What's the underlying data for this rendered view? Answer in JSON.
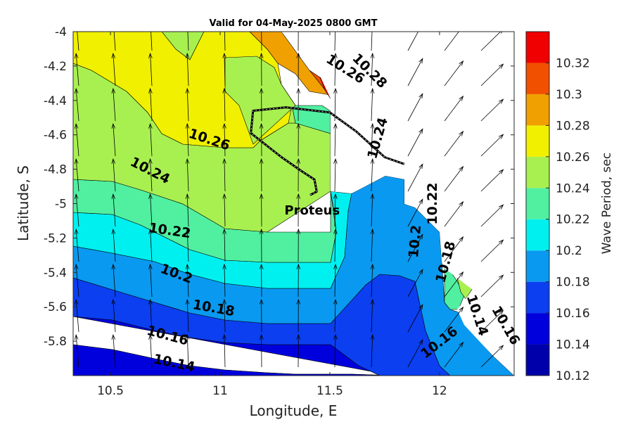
{
  "chart_data": {
    "type": "heatmap",
    "title": "Valid for 04-May-2025 0800 GMT",
    "xlabel": "Longitude, E",
    "ylabel": "Latitude, S",
    "colorbar_label": "Wave Period, sec",
    "xlim": [
      10.33,
      12.34
    ],
    "ylim": [
      -6.0,
      -4.0
    ],
    "x_ticks": [
      "10.5",
      "11",
      "11.5",
      "12"
    ],
    "y_ticks": [
      "-4",
      "-4.2",
      "-4.4",
      "-4.6",
      "-4.8",
      "-5",
      "-5.2",
      "-5.4",
      "-5.6",
      "-5.8"
    ],
    "colorbar": {
      "levels": [
        10.12,
        10.14,
        10.16,
        10.18,
        10.2,
        10.22,
        10.24,
        10.26,
        10.28,
        10.3,
        10.32,
        10.34
      ],
      "tick_labels": [
        "10.12",
        "10.14",
        "10.16",
        "10.18",
        "10.2",
        "10.22",
        "10.24",
        "10.26",
        "10.28",
        "10.3",
        "10.32"
      ],
      "colors": [
        "#0000aa",
        "#0000dd",
        "#0b3ff0",
        "#0a99f0",
        "#00f0f0",
        "#50f0a0",
        "#a8f050",
        "#f0f000",
        "#f0a000",
        "#f05000",
        "#f00000"
      ]
    },
    "contour_labels": [
      {
        "text": "10.28",
        "lon": 11.68,
        "lat": -4.23,
        "rot": 45
      },
      {
        "text": "10.26",
        "lon": 11.57,
        "lat": -4.22,
        "rot": 32
      },
      {
        "text": "10.26",
        "lon": 10.95,
        "lat": -4.63,
        "rot": 18
      },
      {
        "text": "10.24",
        "lon": 10.68,
        "lat": -4.81,
        "rot": 27
      },
      {
        "text": "10.24",
        "lon": 11.72,
        "lat": -4.62,
        "rot": -74
      },
      {
        "text": "10.22",
        "lon": 10.77,
        "lat": -5.16,
        "rot": 8
      },
      {
        "text": "10.22",
        "lon": 11.97,
        "lat": -5.0,
        "rot": -90
      },
      {
        "text": "10.2",
        "lon": 10.8,
        "lat": -5.41,
        "rot": 20
      },
      {
        "text": "10.2",
        "lon": 11.89,
        "lat": -5.22,
        "rot": -85
      },
      {
        "text": "10.18",
        "lon": 10.97,
        "lat": -5.61,
        "rot": 10
      },
      {
        "text": "10.18",
        "lon": 12.03,
        "lat": -5.34,
        "rot": -75
      },
      {
        "text": "10.16",
        "lon": 10.76,
        "lat": -5.77,
        "rot": 15
      },
      {
        "text": "10.16",
        "lon": 12.0,
        "lat": -5.81,
        "rot": -38
      },
      {
        "text": "10.14",
        "lon": 12.17,
        "lat": -5.65,
        "rot": 72
      },
      {
        "text": "10.16",
        "lon": 12.3,
        "lat": -5.71,
        "rot": 60
      },
      {
        "text": "10.14",
        "lon": 10.79,
        "lat": -5.93,
        "rot": 12
      }
    ],
    "vessel": {
      "name": "Proteus",
      "lon": 11.4,
      "lat": -4.94
    },
    "track": [
      [
        11.84,
        -4.77
      ],
      [
        11.75,
        -4.73
      ],
      [
        11.62,
        -4.58
      ],
      [
        11.5,
        -4.47
      ],
      [
        11.3,
        -4.44
      ],
      [
        11.15,
        -4.46
      ],
      [
        11.14,
        -4.59
      ],
      [
        11.28,
        -4.73
      ],
      [
        11.37,
        -4.81
      ],
      [
        11.43,
        -4.86
      ],
      [
        11.44,
        -4.93
      ],
      [
        11.41,
        -4.95
      ]
    ],
    "wave_direction_arrows": "northward, swinging north-east at the eastern edge"
  }
}
